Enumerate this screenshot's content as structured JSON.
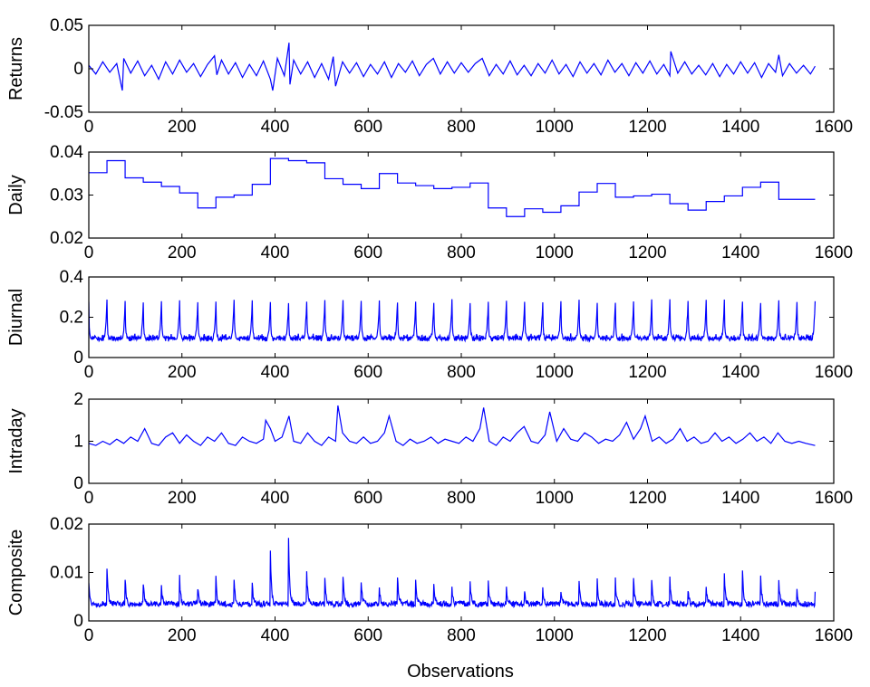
{
  "figure": {
    "xlabel": "Observations"
  },
  "chart_data": [
    {
      "type": "line",
      "name": "returns-panel",
      "ylabel": "Returns",
      "xlim": [
        0,
        1600
      ],
      "ylim": [
        -0.05,
        0.05
      ],
      "xticks": [
        0,
        200,
        400,
        600,
        800,
        1000,
        1200,
        1400,
        1600
      ],
      "xtick_labels": [
        "0",
        "200",
        "400",
        "600",
        "800",
        "1000",
        "1200",
        "1400",
        "1600"
      ],
      "yticks": [
        -0.05,
        0,
        0.05
      ],
      "ytick_labels": [
        "-0.05",
        "0",
        "0.05"
      ],
      "color": "#0000ff",
      "x": [
        0,
        15,
        30,
        45,
        60,
        72,
        75,
        90,
        105,
        120,
        135,
        150,
        165,
        180,
        195,
        210,
        225,
        240,
        255,
        270,
        275,
        285,
        300,
        315,
        330,
        345,
        360,
        375,
        390,
        395,
        405,
        420,
        430,
        432,
        440,
        455,
        470,
        485,
        500,
        515,
        525,
        530,
        545,
        560,
        575,
        590,
        605,
        620,
        635,
        650,
        665,
        680,
        695,
        710,
        725,
        740,
        755,
        770,
        785,
        800,
        815,
        830,
        845,
        860,
        875,
        890,
        905,
        920,
        935,
        950,
        965,
        980,
        995,
        1010,
        1025,
        1040,
        1055,
        1070,
        1085,
        1100,
        1115,
        1130,
        1145,
        1160,
        1175,
        1190,
        1205,
        1220,
        1235,
        1248,
        1250,
        1265,
        1280,
        1295,
        1310,
        1325,
        1340,
        1355,
        1370,
        1385,
        1400,
        1415,
        1430,
        1445,
        1460,
        1475,
        1482,
        1490,
        1505,
        1520,
        1535,
        1550,
        1560
      ],
      "y": [
        0.004,
        -0.006,
        0.008,
        -0.004,
        0.006,
        -0.025,
        0.012,
        -0.005,
        0.009,
        -0.008,
        0.004,
        -0.012,
        0.008,
        -0.006,
        0.01,
        -0.004,
        0.006,
        -0.009,
        0.005,
        0.015,
        -0.007,
        0.01,
        -0.006,
        0.007,
        -0.01,
        0.005,
        -0.008,
        0.009,
        -0.012,
        -0.025,
        0.012,
        -0.008,
        0.03,
        -0.018,
        0.01,
        -0.006,
        0.008,
        -0.01,
        0.006,
        -0.012,
        0.014,
        -0.02,
        0.008,
        -0.005,
        0.007,
        -0.009,
        0.005,
        -0.006,
        0.008,
        -0.01,
        0.006,
        -0.004,
        0.009,
        -0.008,
        0.005,
        0.012,
        -0.006,
        0.008,
        -0.005,
        0.007,
        -0.004,
        0.006,
        0.012,
        -0.008,
        0.005,
        -0.006,
        0.009,
        -0.007,
        0.004,
        -0.008,
        0.006,
        -0.005,
        0.01,
        -0.006,
        0.005,
        -0.009,
        0.008,
        -0.005,
        0.006,
        -0.007,
        0.01,
        -0.004,
        0.006,
        -0.008,
        0.007,
        -0.005,
        0.009,
        -0.006,
        0.005,
        -0.008,
        0.02,
        -0.005,
        0.008,
        -0.006,
        0.004,
        -0.007,
        0.006,
        -0.009,
        0.005,
        -0.006,
        0.008,
        -0.005,
        0.007,
        -0.01,
        0.006,
        -0.004,
        0.016,
        -0.008,
        0.006,
        -0.005,
        0.004,
        -0.006,
        0.003
      ]
    },
    {
      "type": "line",
      "name": "daily-panel",
      "ylabel": "Daily",
      "xlim": [
        0,
        1600
      ],
      "ylim": [
        0.02,
        0.04
      ],
      "xticks": [
        0,
        200,
        400,
        600,
        800,
        1000,
        1200,
        1400,
        1600
      ],
      "xtick_labels": [
        "0",
        "200",
        "400",
        "600",
        "800",
        "1000",
        "1200",
        "1400",
        "1600"
      ],
      "yticks": [
        0.02,
        0.03,
        0.04
      ],
      "ytick_labels": [
        "0.02",
        "0.03",
        "0.04"
      ],
      "color": "#0000ff",
      "step": true,
      "x": [
        0,
        39,
        78,
        117,
        156,
        195,
        234,
        273,
        312,
        351,
        390,
        429,
        468,
        507,
        546,
        585,
        624,
        663,
        702,
        741,
        780,
        819,
        858,
        897,
        936,
        975,
        1014,
        1053,
        1092,
        1131,
        1170,
        1209,
        1248,
        1287,
        1326,
        1365,
        1404,
        1443,
        1482,
        1521,
        1560
      ],
      "y": [
        0.0352,
        0.038,
        0.034,
        0.033,
        0.032,
        0.0305,
        0.027,
        0.0295,
        0.03,
        0.0325,
        0.0385,
        0.038,
        0.0375,
        0.0338,
        0.0325,
        0.0315,
        0.035,
        0.0328,
        0.0322,
        0.0315,
        0.0318,
        0.0328,
        0.027,
        0.025,
        0.0268,
        0.026,
        0.0275,
        0.0307,
        0.0327,
        0.0295,
        0.0298,
        0.0302,
        0.028,
        0.0265,
        0.0285,
        0.0298,
        0.0318,
        0.033,
        0.029,
        0.029,
        0.029
      ]
    },
    {
      "type": "line",
      "name": "diurnal-panel",
      "ylabel": "Diurnal",
      "xlim": [
        0,
        1600
      ],
      "ylim": [
        0,
        0.4
      ],
      "xticks": [
        0,
        200,
        400,
        600,
        800,
        1000,
        1200,
        1400,
        1600
      ],
      "xtick_labels": [
        "0",
        "200",
        "400",
        "600",
        "800",
        "1000",
        "1200",
        "1400",
        "1600"
      ],
      "yticks": [
        0,
        0.2,
        0.4
      ],
      "ytick_labels": [
        "0",
        "0.2",
        "0.4"
      ],
      "color": "#0000ff",
      "pattern": {
        "period": 39,
        "profile": [
          0.28,
          0.16,
          0.12,
          0.11,
          0.1,
          0.1,
          0.09,
          0.095,
          0.1,
          0.09,
          0.1,
          0.095,
          0.09,
          0.1,
          0.11,
          0.09,
          0.1,
          0.095,
          0.1,
          0.09,
          0.1,
          0.11,
          0.09,
          0.095,
          0.1,
          0.09,
          0.1,
          0.095,
          0.09,
          0.1,
          0.1,
          0.09,
          0.095,
          0.1,
          0.11,
          0.12,
          0.14,
          0.18,
          0.22
        ],
        "x_start": 0,
        "x_end": 1560
      }
    },
    {
      "type": "line",
      "name": "intraday-panel",
      "ylabel": "Intraday",
      "xlim": [
        0,
        1600
      ],
      "ylim": [
        0,
        2
      ],
      "xticks": [
        0,
        200,
        400,
        600,
        800,
        1000,
        1200,
        1400,
        1600
      ],
      "xtick_labels": [
        "0",
        "200",
        "400",
        "600",
        "800",
        "1000",
        "1200",
        "1400",
        "1600"
      ],
      "yticks": [
        0,
        1,
        2
      ],
      "ytick_labels": [
        "0",
        "1",
        "2"
      ],
      "color": "#0000ff",
      "x": [
        0,
        15,
        30,
        45,
        60,
        75,
        90,
        105,
        120,
        135,
        150,
        165,
        180,
        195,
        210,
        225,
        240,
        255,
        270,
        285,
        300,
        315,
        330,
        345,
        360,
        375,
        380,
        390,
        400,
        415,
        430,
        440,
        455,
        470,
        485,
        500,
        515,
        530,
        535,
        545,
        560,
        575,
        590,
        605,
        620,
        635,
        645,
        660,
        675,
        690,
        705,
        720,
        735,
        750,
        765,
        780,
        795,
        810,
        825,
        840,
        848,
        860,
        875,
        890,
        905,
        920,
        935,
        950,
        965,
        980,
        990,
        1005,
        1020,
        1035,
        1050,
        1065,
        1080,
        1095,
        1110,
        1125,
        1140,
        1155,
        1170,
        1185,
        1195,
        1210,
        1225,
        1240,
        1255,
        1270,
        1285,
        1300,
        1315,
        1330,
        1345,
        1360,
        1375,
        1390,
        1405,
        1420,
        1435,
        1450,
        1465,
        1480,
        1495,
        1510,
        1525,
        1540,
        1560
      ],
      "y": [
        0.95,
        0.9,
        1.0,
        0.92,
        1.05,
        0.95,
        1.1,
        1.0,
        1.3,
        0.95,
        0.9,
        1.1,
        1.2,
        0.95,
        1.15,
        1.0,
        0.9,
        1.1,
        1.0,
        1.2,
        0.95,
        0.9,
        1.1,
        1.0,
        0.95,
        1.05,
        1.5,
        1.3,
        1.0,
        1.1,
        1.6,
        1.0,
        0.95,
        1.2,
        1.0,
        0.9,
        1.1,
        1.0,
        1.85,
        1.2,
        1.0,
        0.95,
        1.1,
        0.95,
        1.0,
        1.2,
        1.6,
        1.0,
        0.9,
        1.05,
        0.95,
        1.0,
        1.1,
        0.95,
        1.05,
        1.0,
        0.95,
        1.1,
        1.0,
        1.3,
        1.8,
        1.0,
        0.9,
        1.1,
        1.0,
        1.2,
        1.35,
        1.0,
        0.95,
        1.15,
        1.7,
        1.0,
        1.3,
        1.05,
        1.0,
        1.2,
        1.1,
        0.95,
        1.05,
        1.0,
        1.15,
        1.45,
        1.05,
        1.3,
        1.6,
        1.0,
        1.1,
        0.95,
        1.05,
        1.3,
        1.0,
        1.1,
        0.95,
        1.0,
        1.2,
        1.0,
        1.1,
        0.95,
        1.05,
        1.2,
        1.0,
        1.1,
        0.95,
        1.2,
        1.0,
        0.95,
        1.0,
        0.95,
        0.9
      ]
    },
    {
      "type": "line",
      "name": "composite-panel",
      "ylabel": "Composite",
      "xlim": [
        0,
        1600
      ],
      "ylim": [
        0,
        0.02
      ],
      "xticks": [
        0,
        200,
        400,
        600,
        800,
        1000,
        1200,
        1400,
        1600
      ],
      "xtick_labels": [
        "0",
        "200",
        "400",
        "600",
        "800",
        "1000",
        "1200",
        "1400",
        "1600"
      ],
      "yticks": [
        0,
        0.01,
        0.02
      ],
      "ytick_labels": [
        "0",
        "0.01",
        "0.02"
      ],
      "color": "#0000ff",
      "pattern": {
        "period": 39,
        "base": 0.0035,
        "x_start": 0,
        "x_end": 1560,
        "peaks": [
          0.008,
          0.011,
          0.009,
          0.008,
          0.007,
          0.009,
          0.007,
          0.009,
          0.0085,
          0.0082,
          0.0145,
          0.017,
          0.0105,
          0.009,
          0.0095,
          0.0085,
          0.007,
          0.0095,
          0.008,
          0.0075,
          0.007,
          0.0085,
          0.008,
          0.0065,
          0.0065,
          0.007,
          0.0065,
          0.0085,
          0.009,
          0.0085,
          0.0085,
          0.0085,
          0.009,
          0.0065,
          0.007,
          0.0095,
          0.0105,
          0.0095,
          0.0085,
          0.0065
        ]
      }
    }
  ]
}
